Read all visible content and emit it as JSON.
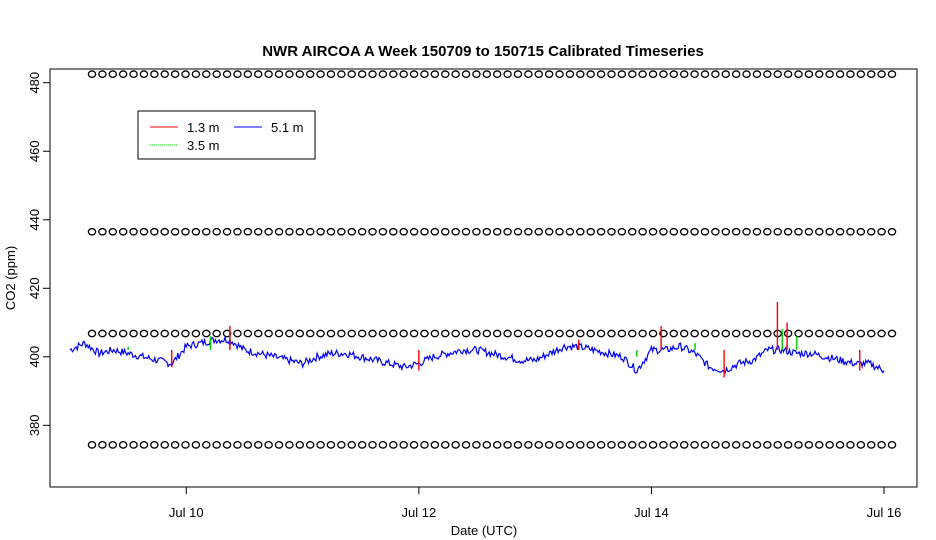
{
  "chart_data": {
    "type": "line",
    "title": "NWR AIRCOA A  Week 150709 to 150715  Calibrated Timeseries",
    "xlabel": "Date (UTC)",
    "ylabel": "CO2 (ppm)",
    "xlim": [
      "2015-07-09T00:00",
      "2015-07-16T00:00"
    ],
    "ylim": [
      362,
      484
    ],
    "x_ticks": [
      {
        "label": "Jul 10",
        "value": "2015-07-10T00:00"
      },
      {
        "label": "Jul 12",
        "value": "2015-07-12T00:00"
      },
      {
        "label": "Jul 14",
        "value": "2015-07-14T00:00"
      },
      {
        "label": "Jul 16",
        "value": "2015-07-16T00:00"
      }
    ],
    "y_ticks": [
      380,
      400,
      420,
      440,
      460,
      480
    ],
    "grid": false,
    "legend_placement": "top-left",
    "legend": [
      {
        "name": "1.3 m",
        "color": "#ff0000"
      },
      {
        "name": "3.5 m",
        "color": "#00cc00"
      },
      {
        "name": "5.1 m",
        "color": "#0000ff"
      }
    ],
    "series": [
      {
        "name": "5.1 m",
        "color": "#0000ff",
        "x": [
          "2015-07-09T00:00",
          "2015-07-09T03:00",
          "2015-07-09T06:00",
          "2015-07-09T09:00",
          "2015-07-09T12:00",
          "2015-07-09T15:00",
          "2015-07-09T18:00",
          "2015-07-09T21:00",
          "2015-07-10T00:00",
          "2015-07-10T03:00",
          "2015-07-10T06:00",
          "2015-07-10T09:00",
          "2015-07-10T12:00",
          "2015-07-10T15:00",
          "2015-07-10T18:00",
          "2015-07-10T21:00",
          "2015-07-11T00:00",
          "2015-07-11T03:00",
          "2015-07-11T06:00",
          "2015-07-11T09:00",
          "2015-07-11T12:00",
          "2015-07-11T15:00",
          "2015-07-11T18:00",
          "2015-07-11T21:00",
          "2015-07-12T00:00",
          "2015-07-12T03:00",
          "2015-07-12T06:00",
          "2015-07-12T09:00",
          "2015-07-12T12:00",
          "2015-07-12T15:00",
          "2015-07-12T18:00",
          "2015-07-12T21:00",
          "2015-07-13T00:00",
          "2015-07-13T03:00",
          "2015-07-13T06:00",
          "2015-07-13T09:00",
          "2015-07-13T12:00",
          "2015-07-13T15:00",
          "2015-07-13T18:00",
          "2015-07-13T21:00",
          "2015-07-14T00:00",
          "2015-07-14T03:00",
          "2015-07-14T06:00",
          "2015-07-14T09:00",
          "2015-07-14T12:00",
          "2015-07-14T15:00",
          "2015-07-14T18:00",
          "2015-07-14T21:00",
          "2015-07-15T00:00",
          "2015-07-15T03:00",
          "2015-07-15T06:00",
          "2015-07-15T09:00",
          "2015-07-15T12:00",
          "2015-07-15T15:00",
          "2015-07-15T18:00",
          "2015-07-15T21:00",
          "2015-07-16T00:00"
        ],
        "values": [
          402,
          404,
          401,
          402,
          401,
          400,
          399,
          398,
          403,
          404,
          405,
          405,
          402,
          401,
          400,
          399,
          398,
          400,
          401,
          401,
          400,
          399,
          398,
          397,
          398,
          400,
          401,
          402,
          402,
          401,
          400,
          399,
          399,
          401,
          403,
          403,
          402,
          401,
          400,
          396,
          402,
          402,
          403,
          401,
          397,
          396,
          398,
          399,
          402,
          402,
          401,
          401,
          400,
          399,
          398,
          398,
          396
        ]
      },
      {
        "name": "3.5 m",
        "color": "#00cc00",
        "x": [
          "2015-07-09T12:00",
          "2015-07-10T05:00",
          "2015-07-10T09:00",
          "2015-07-13T09:00",
          "2015-07-13T21:00",
          "2015-07-14T09:00",
          "2015-07-15T03:00",
          "2015-07-15T06:00",
          "2015-07-15T12:00"
        ],
        "values": [
          403,
          406,
          408,
          404,
          400,
          404,
          408,
          406,
          402
        ]
      },
      {
        "name": "1.3 m",
        "color": "#ff0000",
        "x": [
          "2015-07-09T21:00",
          "2015-07-10T09:00",
          "2015-07-12T00:00",
          "2015-07-13T09:00",
          "2015-07-14T02:00",
          "2015-07-14T15:00",
          "2015-07-15T02:00",
          "2015-07-15T04:00",
          "2015-07-15T19:00"
        ],
        "values": [
          397,
          409,
          396,
          405,
          409,
          394,
          416,
          410,
          396
        ]
      }
    ],
    "calibration_points": [
      {
        "level": 482.5,
        "count": 78
      },
      {
        "level": 436.5,
        "count": 78
      },
      {
        "level": 406.8,
        "count": 78
      },
      {
        "level": 374.3,
        "count": 78
      }
    ]
  }
}
